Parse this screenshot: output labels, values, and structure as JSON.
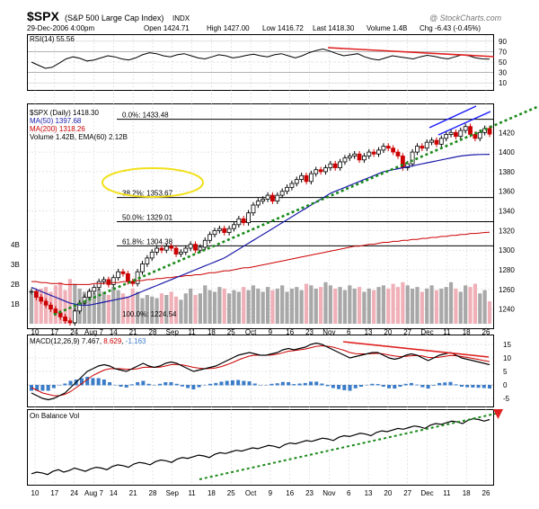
{
  "header": {
    "symbol": "$SPX",
    "name": "(S&P 500 Large Cap Index)",
    "exchange": "INDX",
    "date": "29-Dec-2006 4:00pm",
    "open_label": "Open",
    "open": "1424.71",
    "high_label": "High",
    "high": "1427.00",
    "low_label": "Low",
    "low": "1416.72",
    "last_label": "Last",
    "last": "1418.30",
    "volume_label": "Volume",
    "volume": "1.4B",
    "chg_label": "Chg",
    "chg": "-6.43 (-0.45%)",
    "watermark": "@ StockCharts.com"
  },
  "colors": {
    "up": "#000000",
    "down": "#cc0000",
    "ma50": "#1a1aa8",
    "ma200": "#cc0000",
    "trend": "#1a8a1a",
    "fib_circle": "#f2e01a",
    "vol_up": "#a8a8a8",
    "vol_down": "#f0b0b8",
    "macd_hist": "#3a7cc8",
    "grid": "#cccccc",
    "trend_red": "#e02020"
  },
  "chart_data": {
    "type": "line",
    "x_ticks": [
      "10",
      "17",
      "24",
      "Aug 7",
      "14",
      "21",
      "28",
      "Sep",
      "11",
      "18",
      "25",
      "Oct",
      "9",
      "16",
      "23",
      "Nov",
      "6",
      "13",
      "20",
      "27",
      "Dec",
      "11",
      "18",
      "26"
    ],
    "rsi": {
      "legend": "RSI(14) 55.56",
      "levels": [
        90,
        70,
        50,
        30,
        10
      ],
      "ylim": [
        0,
        100
      ],
      "values": [
        50,
        44,
        38,
        40,
        48,
        56,
        60,
        57,
        52,
        54,
        58,
        62,
        60,
        56,
        54,
        58,
        64,
        68,
        66,
        62,
        60,
        64,
        66,
        62,
        58,
        56,
        60,
        64,
        62,
        58,
        60,
        63,
        65,
        62,
        60,
        64,
        66,
        62,
        58,
        62,
        68,
        72,
        75,
        71,
        66,
        62,
        64,
        66,
        60,
        56,
        54,
        58,
        62,
        60,
        58,
        56,
        60,
        63,
        61,
        58,
        56,
        60,
        64,
        62,
        58,
        56,
        55.56
      ]
    },
    "price": {
      "legend_main": "$SPX (Daily) 1418.30",
      "legend_ma50": "MA(50) 1397.68",
      "legend_ma200": "MA(200) 1318.26",
      "legend_volume": "Volume 1.42B, EMA(60) 2.12B",
      "ylim": [
        1225,
        1445
      ],
      "y_ticks": [
        1240,
        1260,
        1280,
        1300,
        1320,
        1340,
        1360,
        1380,
        1400,
        1420
      ],
      "fib": [
        {
          "label": "0.0%: 1433.48",
          "value": 1433.48
        },
        {
          "label": "38.2%: 1353.67",
          "value": 1353.67
        },
        {
          "label": "50.0%: 1329.01",
          "value": 1329.01
        },
        {
          "label": "61.8%: 1304.38",
          "value": 1304.38
        },
        {
          "label": "100.0%: 1224.54",
          "value": 1224.54
        }
      ],
      "close": [
        1258,
        1252,
        1248,
        1244,
        1240,
        1236,
        1232,
        1228,
        1226,
        1238,
        1246,
        1252,
        1258,
        1262,
        1268,
        1270,
        1265,
        1272,
        1278,
        1276,
        1268,
        1266,
        1278,
        1286,
        1292,
        1298,
        1302,
        1300,
        1304,
        1302,
        1296,
        1298,
        1302,
        1306,
        1300,
        1303,
        1310,
        1316,
        1320,
        1322,
        1318,
        1322,
        1326,
        1332,
        1328,
        1338,
        1346,
        1350,
        1352,
        1356,
        1350,
        1356,
        1360,
        1364,
        1368,
        1372,
        1376,
        1370,
        1378,
        1382,
        1380,
        1384,
        1388,
        1384,
        1390,
        1394,
        1396,
        1398,
        1392,
        1396,
        1400,
        1398,
        1402,
        1406,
        1404,
        1400,
        1396,
        1384,
        1388,
        1400,
        1406,
        1404,
        1410,
        1412,
        1408,
        1414,
        1418,
        1420,
        1416,
        1422,
        1426,
        1418,
        1414,
        1420,
        1424,
        1418.3
      ],
      "ma50": [
        1262,
        1260,
        1258,
        1256,
        1254,
        1252,
        1250,
        1248,
        1246,
        1245,
        1244,
        1244,
        1244,
        1245,
        1246,
        1247,
        1248,
        1249,
        1250,
        1251,
        1252,
        1254,
        1256,
        1258,
        1260,
        1262,
        1264,
        1266,
        1268,
        1270,
        1272,
        1274,
        1276,
        1278,
        1280,
        1282,
        1284,
        1286,
        1288,
        1290,
        1292,
        1295,
        1298,
        1301,
        1304,
        1307,
        1310,
        1313,
        1316,
        1319,
        1322,
        1325,
        1328,
        1331,
        1334,
        1337,
        1340,
        1343,
        1346,
        1349,
        1352,
        1355,
        1358,
        1360,
        1362,
        1364,
        1366,
        1368,
        1370,
        1372,
        1374,
        1376,
        1378,
        1380,
        1381,
        1382,
        1383,
        1384,
        1385,
        1386,
        1387,
        1388,
        1389,
        1390,
        1391,
        1392,
        1393,
        1394,
        1395,
        1396,
        1396.5,
        1397,
        1397.3,
        1397.5,
        1397.6,
        1397.68
      ],
      "ma200": [
        1268,
        1268,
        1267,
        1267,
        1266,
        1266,
        1266,
        1265,
        1265,
        1265,
        1265,
        1265,
        1265,
        1266,
        1266,
        1266,
        1267,
        1267,
        1267,
        1268,
        1268,
        1268,
        1269,
        1269,
        1270,
        1270,
        1271,
        1271,
        1272,
        1272,
        1273,
        1273,
        1274,
        1274,
        1275,
        1275,
        1276,
        1277,
        1277,
        1278,
        1279,
        1279,
        1280,
        1281,
        1282,
        1282,
        1283,
        1284,
        1285,
        1286,
        1287,
        1288,
        1289,
        1290,
        1291,
        1292,
        1293,
        1294,
        1295,
        1296,
        1297,
        1298,
        1299,
        1300,
        1301,
        1302,
        1303,
        1304,
        1304,
        1305,
        1306,
        1306,
        1307,
        1308,
        1308,
        1309,
        1309,
        1310,
        1310,
        1311,
        1311,
        1312,
        1312,
        1313,
        1313,
        1314,
        1314,
        1315,
        1315,
        1316,
        1316,
        1317,
        1317,
        1317.5,
        1318,
        1318.26
      ],
      "volume": [
        1.9,
        2.0,
        2.2,
        2.3,
        2.0,
        2.4,
        2.6,
        2.1,
        2.8,
        2.5,
        2.2,
        2.0,
        2.1,
        1.9,
        2.2,
        2.0,
        1.8,
        2.3,
        2.1,
        1.9,
        1.7,
        2.2,
        2.0,
        1.6,
        1.8,
        1.7,
        1.6,
        1.9,
        1.8,
        2.0,
        1.7,
        1.5,
        1.9,
        2.2,
        1.8,
        1.9,
        2.4,
        2.1,
        2.0,
        2.3,
        2.2,
        1.9,
        2.1,
        2.0,
        2.3,
        2.1,
        2.4,
        2.2,
        2.0,
        2.3,
        2.1,
        2.2,
        2.4,
        2.0,
        2.2,
        2.3,
        2.1,
        2.5,
        2.4,
        2.2,
        2.3,
        2.6,
        2.4,
        2.2,
        2.3,
        2.1,
        2.4,
        2.2,
        2.3,
        2.0,
        2.2,
        2.1,
        2.3,
        2.4,
        2.2,
        2.5,
        2.3,
        2.6,
        2.4,
        2.2,
        2.3,
        2.0,
        2.2,
        2.4,
        2.1,
        2.2,
        2.3,
        2.6,
        2.2,
        2.0,
        2.4,
        2.3,
        2.5,
        1.9,
        2.1,
        1.4
      ],
      "vol_ticks": [
        "4B",
        "3B",
        "2B",
        "1B"
      ]
    },
    "macd": {
      "legend_name": "MACD(12,26,9)",
      "legend_macd": "7.467",
      "legend_signal": "8.629",
      "legend_hist": "-1.163",
      "ylim": [
        -7,
        17
      ],
      "y_ticks": [
        15,
        10,
        5,
        0,
        -5
      ],
      "macd": [
        -3,
        -4,
        -5,
        -5.5,
        -5,
        -4,
        -3,
        -1,
        1,
        3,
        5,
        6,
        7,
        7.5,
        7,
        6,
        5.5,
        5,
        6,
        7,
        8,
        7,
        6.5,
        7,
        8,
        8.5,
        8,
        7,
        6,
        5,
        5.5,
        6,
        6.5,
        7,
        8,
        9,
        10,
        11,
        11.5,
        12,
        11.5,
        11,
        11,
        11.5,
        12,
        13,
        13.5,
        13,
        13.5,
        14,
        15,
        15.5,
        15,
        14,
        13,
        12,
        11,
        10,
        10.5,
        11,
        11.5,
        12,
        12,
        11,
        10,
        9.5,
        10,
        11,
        11.5,
        11,
        10,
        9,
        10,
        11,
        11.5,
        12,
        11,
        10,
        9.5,
        9,
        8.5,
        8,
        7.467
      ],
      "signal": [
        -1,
        -2,
        -3,
        -3.5,
        -4,
        -4,
        -3.5,
        -2.5,
        -1,
        0.5,
        2,
        3.5,
        4.5,
        5.5,
        6,
        6,
        6,
        5.8,
        5.8,
        6,
        6.5,
        6.6,
        6.5,
        6.6,
        7,
        7.5,
        7.6,
        7.4,
        7,
        6.5,
        6.2,
        6,
        6.1,
        6.3,
        6.8,
        7.5,
        8.3,
        9.2,
        10,
        10.7,
        11,
        11,
        11,
        11.1,
        11.4,
        11.9,
        12.5,
        12.7,
        13,
        13.3,
        13.8,
        14.3,
        14.5,
        14.3,
        14,
        13.4,
        12.8,
        12,
        11.6,
        11.5,
        11.5,
        11.6,
        11.7,
        11.5,
        11.1,
        10.7,
        10.5,
        10.6,
        10.8,
        10.9,
        10.7,
        10.2,
        10.1,
        10.3,
        10.6,
        10.9,
        10.8,
        10.5,
        10.2,
        9.8,
        9.4,
        9,
        8.629
      ]
    },
    "obv": {
      "legend": "On Balance Vol",
      "values": [
        28,
        30,
        29,
        27,
        31,
        33,
        30,
        32,
        35,
        33,
        31,
        34,
        36,
        35,
        33,
        37,
        39,
        38,
        36,
        40,
        42,
        41,
        39,
        43,
        45,
        44,
        42,
        46,
        48,
        47,
        49,
        51,
        50,
        48,
        52,
        54,
        53,
        55,
        57,
        56,
        58,
        60,
        59,
        61,
        63,
        62,
        60,
        64,
        66,
        65,
        67,
        69,
        68,
        70,
        72,
        71,
        69,
        73,
        75,
        74,
        76,
        78,
        77,
        75,
        79,
        81,
        80,
        82,
        84,
        83,
        85,
        87,
        86,
        84,
        88,
        90,
        89,
        91,
        93,
        92,
        90,
        94,
        96,
        95,
        93,
        95
      ]
    }
  }
}
